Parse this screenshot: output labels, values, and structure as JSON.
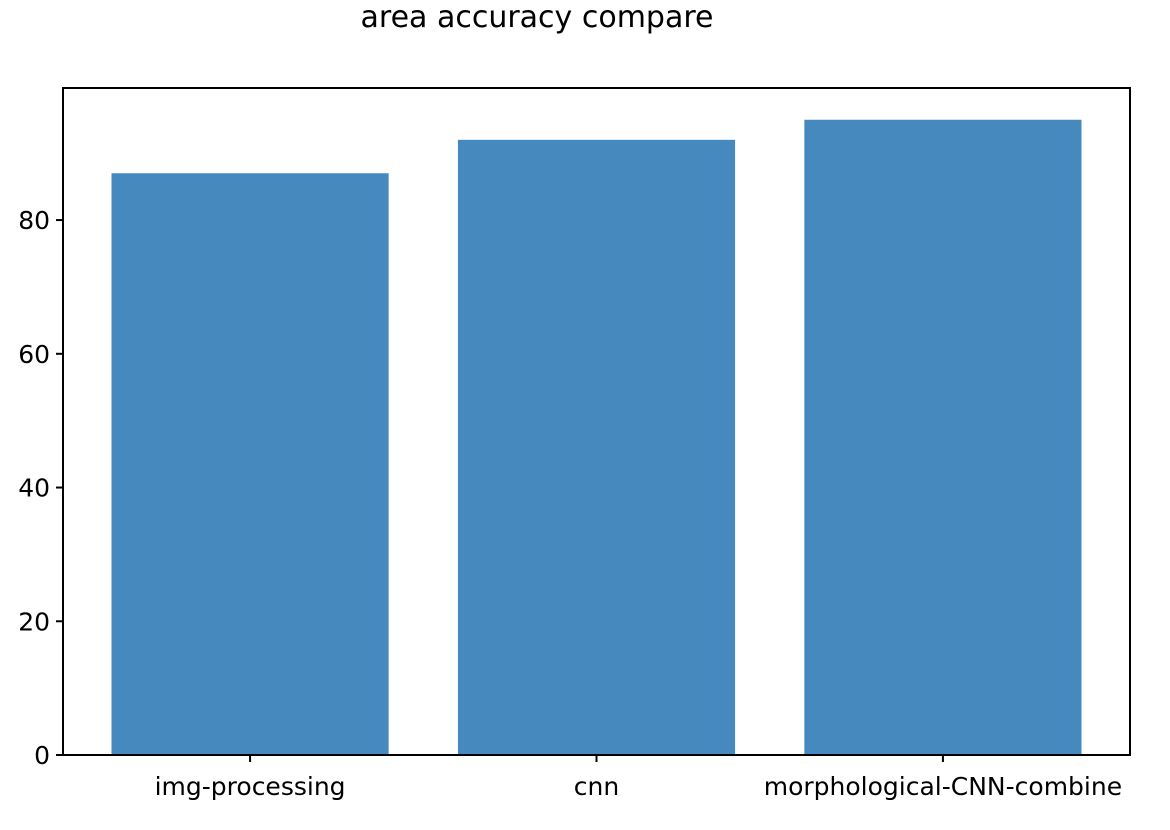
{
  "chart_data": {
    "type": "bar",
    "title": "area accuracy compare",
    "xlabel": "",
    "ylabel": "",
    "categories": [
      "img-processing",
      "cnn",
      "morphological-CNN-combine"
    ],
    "values": [
      87,
      92,
      95
    ],
    "ylim": [
      0,
      99.75
    ],
    "yticks": [
      0,
      20,
      40,
      60,
      80
    ],
    "bar_color": "#4589BE",
    "grid": false,
    "legend": "none"
  }
}
